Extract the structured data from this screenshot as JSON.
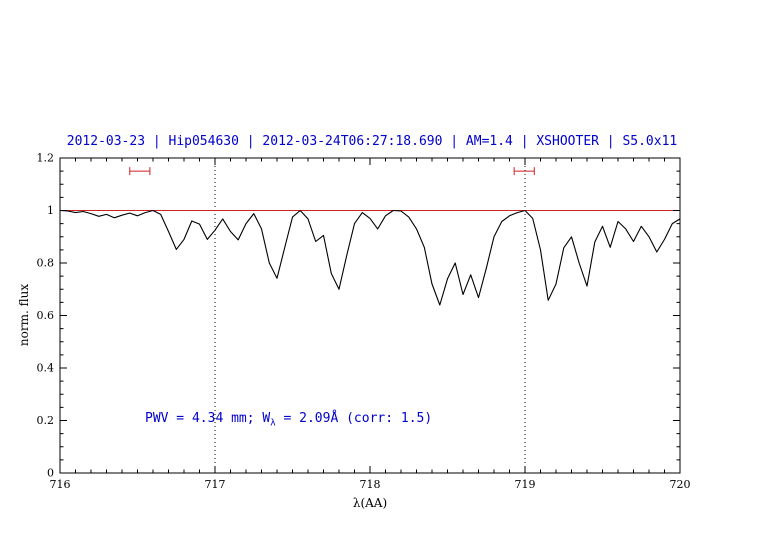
{
  "chart_data": {
    "type": "line",
    "title": "2012-03-23 | Hip054630 | 2012-03-24T06:27:18.690 | AM=1.4 | XSHOOTER | S5.0x11",
    "title_color": "#0000cc",
    "xlabel": "λ(AA)",
    "ylabel": "norm. flux",
    "xlim": [
      716,
      720
    ],
    "ylim": [
      0,
      1.2
    ],
    "xticks": {
      "values": [
        716,
        717,
        718,
        719,
        720
      ],
      "labels": [
        "716",
        "717",
        "718",
        "719",
        "720"
      ],
      "minor_step": 0.1
    },
    "yticks": {
      "values": [
        0,
        0.2,
        0.4,
        0.6,
        0.8,
        1,
        1.2
      ],
      "labels": [
        "0",
        "0.2",
        "0.4",
        "0.6",
        "0.8",
        "1",
        "1.2"
      ],
      "minor_step": 0.05
    },
    "grid": false,
    "dotted_vlines": [
      717,
      719
    ],
    "reference_hline": {
      "y": 1.0
    },
    "interval_markers": [
      {
        "x1": 716.45,
        "x2": 716.58,
        "y": 1.15
      },
      {
        "x1": 718.93,
        "x2": 719.06,
        "y": 1.15
      }
    ],
    "accent_red": "#cc2222",
    "line_color": "#000000",
    "annotation": {
      "prefix": "PWV = 4.34 mm; W",
      "sub": "λ",
      "suffix": " = 2.09Å (corr: 1.5)",
      "color": "#0000cc"
    },
    "series": [
      {
        "name": "telluric-spectrum",
        "points": [
          [
            716.0,
            1.0
          ],
          [
            716.05,
            0.998
          ],
          [
            716.1,
            0.992
          ],
          [
            716.15,
            0.996
          ],
          [
            716.2,
            0.988
          ],
          [
            716.25,
            0.978
          ],
          [
            716.3,
            0.985
          ],
          [
            716.35,
            0.972
          ],
          [
            716.4,
            0.982
          ],
          [
            716.45,
            0.99
          ],
          [
            716.5,
            0.98
          ],
          [
            716.55,
            0.992
          ],
          [
            716.6,
            1.0
          ],
          [
            716.65,
            0.985
          ],
          [
            716.7,
            0.92
          ],
          [
            716.75,
            0.852
          ],
          [
            716.8,
            0.89
          ],
          [
            716.85,
            0.96
          ],
          [
            716.9,
            0.948
          ],
          [
            716.95,
            0.89
          ],
          [
            717.0,
            0.925
          ],
          [
            717.05,
            0.968
          ],
          [
            717.1,
            0.92
          ],
          [
            717.15,
            0.888
          ],
          [
            717.2,
            0.95
          ],
          [
            717.25,
            0.988
          ],
          [
            717.3,
            0.93
          ],
          [
            717.35,
            0.8
          ],
          [
            717.4,
            0.742
          ],
          [
            717.45,
            0.86
          ],
          [
            717.5,
            0.975
          ],
          [
            717.55,
            1.0
          ],
          [
            717.6,
            0.968
          ],
          [
            717.65,
            0.882
          ],
          [
            717.7,
            0.905
          ],
          [
            717.75,
            0.76
          ],
          [
            717.8,
            0.7
          ],
          [
            717.85,
            0.83
          ],
          [
            717.9,
            0.95
          ],
          [
            717.95,
            0.992
          ],
          [
            718.0,
            0.97
          ],
          [
            718.05,
            0.93
          ],
          [
            718.1,
            0.98
          ],
          [
            718.15,
            1.0
          ],
          [
            718.2,
            0.998
          ],
          [
            718.25,
            0.975
          ],
          [
            718.3,
            0.93
          ],
          [
            718.35,
            0.86
          ],
          [
            718.4,
            0.72
          ],
          [
            718.45,
            0.64
          ],
          [
            718.5,
            0.74
          ],
          [
            718.55,
            0.8
          ],
          [
            718.6,
            0.68
          ],
          [
            718.65,
            0.755
          ],
          [
            718.7,
            0.668
          ],
          [
            718.75,
            0.78
          ],
          [
            718.8,
            0.9
          ],
          [
            718.85,
            0.958
          ],
          [
            718.9,
            0.98
          ],
          [
            718.95,
            0.992
          ],
          [
            719.0,
            1.0
          ],
          [
            719.05,
            0.97
          ],
          [
            719.1,
            0.85
          ],
          [
            719.15,
            0.658
          ],
          [
            719.2,
            0.72
          ],
          [
            719.25,
            0.858
          ],
          [
            719.3,
            0.9
          ],
          [
            719.35,
            0.798
          ],
          [
            719.4,
            0.712
          ],
          [
            719.45,
            0.88
          ],
          [
            719.5,
            0.94
          ],
          [
            719.55,
            0.86
          ],
          [
            719.6,
            0.958
          ],
          [
            719.65,
            0.93
          ],
          [
            719.7,
            0.882
          ],
          [
            719.75,
            0.94
          ],
          [
            719.8,
            0.9
          ],
          [
            719.85,
            0.842
          ],
          [
            719.9,
            0.89
          ],
          [
            719.95,
            0.95
          ],
          [
            720.0,
            0.968
          ]
        ]
      }
    ]
  }
}
